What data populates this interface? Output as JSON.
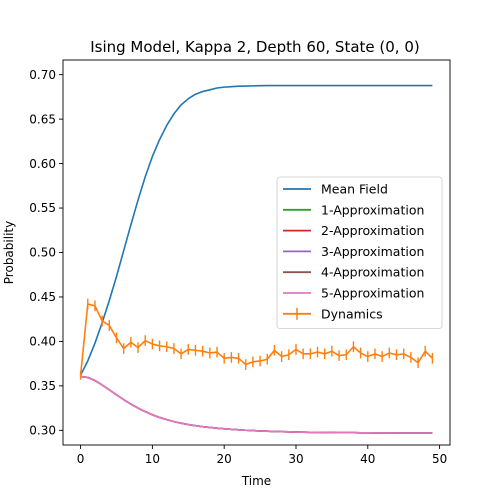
{
  "chart_data": {
    "type": "line",
    "title": "Ising Model, Kappa 2, Depth 60, State (0, 0)",
    "xlabel": "Time",
    "ylabel": "Probability",
    "xlim": [
      -2.45,
      51.45
    ],
    "ylim": [
      0.2835,
      0.7165
    ],
    "xticks": [
      "0",
      "10",
      "20",
      "30",
      "40",
      "50"
    ],
    "yticks": [
      "0.30",
      "0.35",
      "0.40",
      "0.45",
      "0.50",
      "0.55",
      "0.60",
      "0.65",
      "0.70"
    ],
    "grid": false,
    "legend_position": "right",
    "x": [
      0,
      1,
      2,
      3,
      4,
      5,
      6,
      7,
      8,
      9,
      10,
      11,
      12,
      13,
      14,
      15,
      16,
      17,
      18,
      19,
      20,
      21,
      22,
      23,
      24,
      25,
      26,
      27,
      28,
      29,
      30,
      31,
      32,
      33,
      34,
      35,
      36,
      37,
      38,
      39,
      40,
      41,
      42,
      43,
      44,
      45,
      46,
      47,
      48,
      49
    ],
    "series": [
      {
        "name": "Mean Field",
        "color": "#1f77b4",
        "values": [
          0.362,
          0.378,
          0.398,
          0.421,
          0.446,
          0.473,
          0.502,
          0.531,
          0.559,
          0.585,
          0.608,
          0.627,
          0.643,
          0.656,
          0.666,
          0.673,
          0.678,
          0.681,
          0.683,
          0.685,
          0.686,
          0.6865,
          0.687,
          0.6872,
          0.6874,
          0.6876,
          0.6877,
          0.6878,
          0.6878,
          0.6878,
          0.6878,
          0.6878,
          0.6878,
          0.6878,
          0.6878,
          0.6878,
          0.6878,
          0.6878,
          0.6878,
          0.6878,
          0.6878,
          0.6878,
          0.6878,
          0.6878,
          0.6878,
          0.6878,
          0.6878,
          0.6878,
          0.6878,
          0.6878
        ]
      },
      {
        "name": "1-Approximation",
        "color": "#2ca02c",
        "values": [
          0.3605,
          0.3595,
          0.356,
          0.351,
          0.3455,
          0.34,
          0.3345,
          0.3295,
          0.325,
          0.321,
          0.3175,
          0.3145,
          0.312,
          0.3098,
          0.308,
          0.3065,
          0.3052,
          0.3041,
          0.3032,
          0.3024,
          0.3017,
          0.3011,
          0.3006,
          0.3001,
          0.2997,
          0.2993,
          0.299,
          0.2987,
          0.2985,
          0.2983,
          0.2981,
          0.2979,
          0.2978,
          0.2977,
          0.2976,
          0.2975,
          0.2974,
          0.2973,
          0.2973,
          0.2972,
          0.2972,
          0.2971,
          0.2971,
          0.2971,
          0.297,
          0.297,
          0.297,
          0.297,
          0.297,
          0.297
        ]
      },
      {
        "name": "2-Approximation",
        "color": "#d62728",
        "values": [
          0.3605,
          0.3595,
          0.356,
          0.351,
          0.3455,
          0.34,
          0.3345,
          0.3295,
          0.325,
          0.321,
          0.3175,
          0.3145,
          0.312,
          0.3098,
          0.308,
          0.3065,
          0.3052,
          0.3041,
          0.3032,
          0.3024,
          0.3017,
          0.3011,
          0.3006,
          0.3001,
          0.2997,
          0.2993,
          0.299,
          0.2987,
          0.2985,
          0.2983,
          0.2981,
          0.2979,
          0.2978,
          0.2977,
          0.2976,
          0.2975,
          0.2974,
          0.2973,
          0.2973,
          0.2972,
          0.2972,
          0.2971,
          0.2971,
          0.2971,
          0.297,
          0.297,
          0.297,
          0.297,
          0.297,
          0.297
        ]
      },
      {
        "name": "3-Approximation",
        "color": "#9467bd",
        "values": [
          0.3605,
          0.3595,
          0.356,
          0.351,
          0.3455,
          0.34,
          0.3345,
          0.3295,
          0.325,
          0.321,
          0.3175,
          0.3145,
          0.312,
          0.3098,
          0.308,
          0.3065,
          0.3052,
          0.3041,
          0.3032,
          0.3024,
          0.3017,
          0.3011,
          0.3006,
          0.3001,
          0.2997,
          0.2993,
          0.299,
          0.2987,
          0.2985,
          0.2983,
          0.2981,
          0.2979,
          0.2978,
          0.2977,
          0.2976,
          0.2975,
          0.2974,
          0.2973,
          0.2973,
          0.2972,
          0.2972,
          0.2971,
          0.2971,
          0.2971,
          0.297,
          0.297,
          0.297,
          0.297,
          0.297,
          0.297
        ]
      },
      {
        "name": "4-Approximation",
        "color": "#8c564b",
        "values": [
          0.3605,
          0.3595,
          0.356,
          0.351,
          0.3455,
          0.34,
          0.3345,
          0.3295,
          0.325,
          0.321,
          0.3175,
          0.3145,
          0.312,
          0.3098,
          0.308,
          0.3065,
          0.3052,
          0.3041,
          0.3032,
          0.3024,
          0.3017,
          0.3011,
          0.3006,
          0.3001,
          0.2997,
          0.2993,
          0.299,
          0.2987,
          0.2985,
          0.2983,
          0.2981,
          0.2979,
          0.2978,
          0.2977,
          0.2976,
          0.2975,
          0.2974,
          0.2973,
          0.2973,
          0.2972,
          0.2972,
          0.2971,
          0.2971,
          0.2971,
          0.297,
          0.297,
          0.297,
          0.297,
          0.297,
          0.297
        ]
      },
      {
        "name": "5-Approximation",
        "color": "#e377c2",
        "values": [
          0.3605,
          0.3595,
          0.356,
          0.351,
          0.3455,
          0.34,
          0.3345,
          0.3295,
          0.325,
          0.321,
          0.3175,
          0.3145,
          0.312,
          0.3098,
          0.308,
          0.3065,
          0.3052,
          0.3041,
          0.3032,
          0.3024,
          0.3017,
          0.3011,
          0.3006,
          0.3001,
          0.2997,
          0.2993,
          0.299,
          0.2987,
          0.2985,
          0.2983,
          0.2981,
          0.2979,
          0.2978,
          0.2977,
          0.2976,
          0.2975,
          0.2974,
          0.2973,
          0.2973,
          0.2972,
          0.2972,
          0.2971,
          0.2971,
          0.2971,
          0.297,
          0.297,
          0.297,
          0.297,
          0.297,
          0.297
        ]
      },
      {
        "name": "Dynamics",
        "color": "#ff7f0e",
        "errorbars": true,
        "values": [
          0.362,
          0.442,
          0.44,
          0.423,
          0.418,
          0.404,
          0.392,
          0.399,
          0.393,
          0.401,
          0.397,
          0.395,
          0.394,
          0.392,
          0.386,
          0.391,
          0.39,
          0.389,
          0.387,
          0.388,
          0.381,
          0.382,
          0.381,
          0.374,
          0.377,
          0.378,
          0.38,
          0.39,
          0.383,
          0.385,
          0.391,
          0.386,
          0.386,
          0.388,
          0.386,
          0.389,
          0.384,
          0.385,
          0.394,
          0.387,
          0.383,
          0.386,
          0.383,
          0.387,
          0.385,
          0.386,
          0.382,
          0.376,
          0.389,
          0.381
        ],
        "errors": [
          0.005,
          0.006,
          0.006,
          0.006,
          0.006,
          0.006,
          0.006,
          0.006,
          0.006,
          0.006,
          0.006,
          0.006,
          0.006,
          0.006,
          0.006,
          0.006,
          0.006,
          0.006,
          0.006,
          0.006,
          0.006,
          0.006,
          0.006,
          0.006,
          0.006,
          0.006,
          0.006,
          0.006,
          0.006,
          0.006,
          0.006,
          0.006,
          0.006,
          0.006,
          0.006,
          0.006,
          0.006,
          0.006,
          0.006,
          0.006,
          0.006,
          0.006,
          0.006,
          0.006,
          0.006,
          0.006,
          0.006,
          0.006,
          0.006,
          0.006
        ]
      }
    ]
  }
}
